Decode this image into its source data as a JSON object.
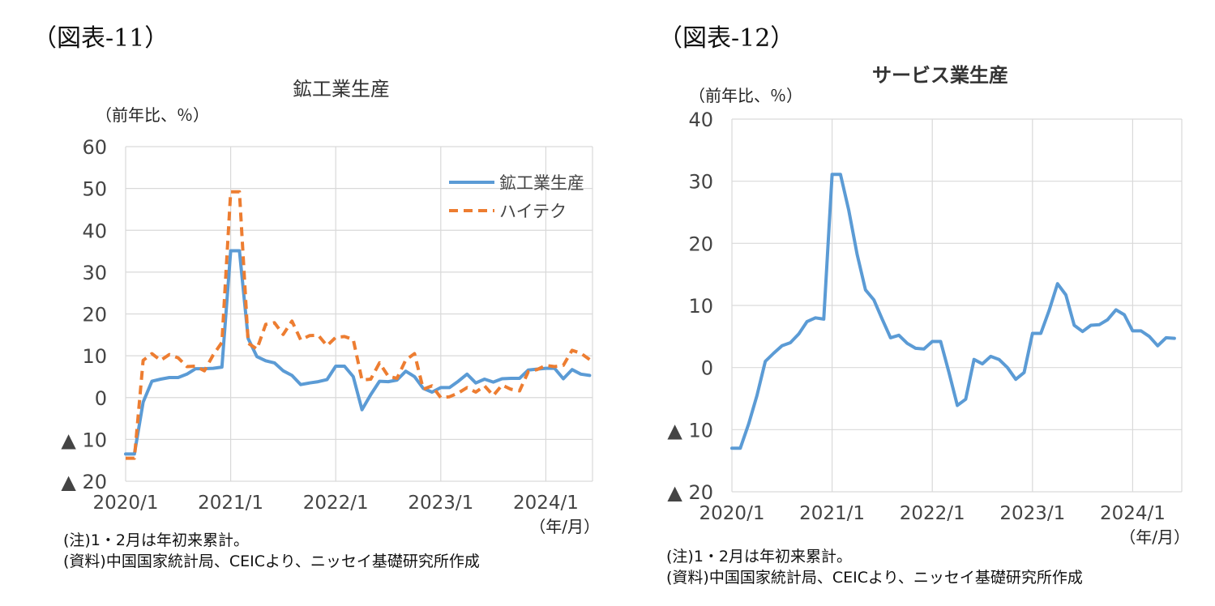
{
  "figures": [
    {
      "label": "（図表-11）"
    },
    {
      "label": "（図表-12）"
    }
  ],
  "chart_data": [
    {
      "type": "line",
      "title": "鉱工業生産",
      "ylabel": "（前年比、％）",
      "xlabel": "（年/月）",
      "ylim": [
        -20,
        60
      ],
      "yticks": [
        60,
        50,
        40,
        30,
        20,
        10,
        0,
        -10,
        -20
      ],
      "ytick_labels": [
        "60",
        "50",
        "40",
        "30",
        "20",
        "10",
        "0",
        "▲ 10",
        "▲ 20"
      ],
      "xticks": [
        "2020/1",
        "2021/1",
        "2022/1",
        "2023/1",
        "2024/1"
      ],
      "x_start": "2020/1",
      "grid": true,
      "legend": "top-right",
      "series": [
        {
          "name": "鉱工業生産",
          "color": "#5b9bd5",
          "style": "solid",
          "values": [
            -13.5,
            -13.5,
            -1.1,
            3.9,
            4.4,
            4.8,
            4.8,
            5.6,
            6.9,
            6.9,
            7.0,
            7.3,
            35.1,
            35.1,
            14.1,
            9.8,
            8.8,
            8.3,
            6.4,
            5.3,
            3.1,
            3.5,
            3.8,
            4.3,
            7.5,
            7.5,
            5.0,
            -2.9,
            0.7,
            3.9,
            3.8,
            4.2,
            6.3,
            5.0,
            2.2,
            1.3,
            2.4,
            2.4,
            3.9,
            5.6,
            3.5,
            4.4,
            3.7,
            4.5,
            4.6,
            4.6,
            6.6,
            6.8,
            7.0,
            7.0,
            4.5,
            6.7,
            5.6,
            5.3
          ]
        },
        {
          "name": "ハイテク",
          "color": "#ed7d31",
          "style": "dashed",
          "values": [
            -14.5,
            -14.5,
            8.9,
            10.5,
            8.9,
            10.3,
            9.5,
            7.4,
            7.5,
            6.4,
            10.2,
            13.2,
            49.2,
            49.2,
            13.0,
            11.6,
            17.5,
            17.9,
            15.1,
            18.3,
            13.8,
            14.8,
            14.9,
            12.4,
            14.4,
            14.6,
            13.9,
            4.2,
            4.4,
            8.3,
            5.1,
            4.6,
            9.0,
            10.5,
            2.0,
            2.8,
            0.0,
            0.2,
            1.1,
            2.4,
            1.3,
            2.8,
            0.5,
            3.0,
            2.0,
            1.6,
            6.2,
            6.7,
            7.7,
            7.4,
            7.7,
            11.3,
            10.6,
            9.1
          ]
        }
      ]
    },
    {
      "type": "line",
      "title": "サービス業生産",
      "ylabel": "（前年比、％）",
      "xlabel": "（年/月）",
      "ylim": [
        -20,
        40
      ],
      "yticks": [
        40,
        30,
        20,
        10,
        0,
        -10,
        -20
      ],
      "ytick_labels": [
        "40",
        "30",
        "20",
        "10",
        "0",
        "▲ 10",
        "▲ 20"
      ],
      "xticks": [
        "2020/1",
        "2021/1",
        "2022/1",
        "2023/1",
        "2024/1"
      ],
      "x_start": "2020/1",
      "grid": true,
      "series": [
        {
          "color": "#5b9bd5",
          "style": "solid",
          "values": [
            -13.0,
            -13.0,
            -9.1,
            -4.5,
            1.0,
            2.3,
            3.5,
            4.0,
            5.4,
            7.4,
            8.0,
            7.8,
            31.1,
            31.1,
            25.3,
            18.2,
            12.5,
            10.9,
            7.8,
            4.8,
            5.2,
            3.9,
            3.1,
            3.0,
            4.2,
            4.2,
            -0.8,
            -6.1,
            -5.1,
            1.3,
            0.6,
            1.8,
            1.3,
            0.0,
            -1.9,
            -0.8,
            5.5,
            5.5,
            9.2,
            13.5,
            11.7,
            6.8,
            5.8,
            6.8,
            6.9,
            7.7,
            9.3,
            8.5,
            5.9,
            5.9,
            5.0,
            3.5,
            4.8,
            4.7
          ]
        }
      ]
    }
  ],
  "notes1": [
    "(注)1・2月は年初来累計。",
    "(資料)中国国家統計局、CEICより、ニッセイ基礎研究所作成"
  ],
  "notes2": [
    "(注)1・2月は年初来累計。",
    "(資料)中国国家統計局、CEICより、ニッセイ基礎研究所作成"
  ]
}
